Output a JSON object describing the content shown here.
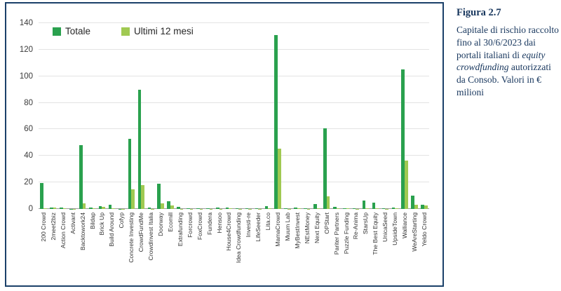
{
  "caption": {
    "title": "Figura 2.7",
    "text_before_italic": "Capitale di rischio raccolto fino al 30/6/2023 dai portali italiani di ",
    "italic": "equity crowdfunding",
    "text_after_italic": " autorizzati da Consob. Valori in € milioni"
  },
  "colors": {
    "frame_border": "#1b4069",
    "caption_text": "#17365d",
    "gridline": "#e3e3e3",
    "axis_text": "#3a3a3a"
  },
  "chart_data": {
    "type": "bar",
    "title": "",
    "xlabel": "",
    "ylabel": "",
    "ylim": [
      0,
      140
    ],
    "yticks": [
      0,
      20,
      40,
      60,
      80,
      100,
      120,
      140
    ],
    "grid": true,
    "legend_position": "top-left",
    "categories": [
      "200 Crowd",
      "2meet2biz",
      "Action Crowd",
      "Activant",
      "Backtowork24",
      "Bildap",
      "Brick Up",
      "Build Around",
      "Cofyp",
      "Concrete Investing",
      "CrowdFundMe",
      "CrowdInvest Italia",
      "Doorway",
      "Ecomill",
      "Extrafunding",
      "Forcrowd",
      "FoxCrowd",
      "Fundera",
      "Hensoo",
      "House4Crowd",
      "Idea Crowdfunding",
      "Investi-re",
      "LifeSeeder",
      "Lita.co",
      "MamaCrowd",
      "Muum Lab",
      "MyBestInvest",
      "NEstMoney",
      "Next Equity",
      "OPStart",
      "Pariter Partners",
      "Puzzle Funding",
      "Re-Anima",
      "StarsUp",
      "The Best Equity",
      "UnicaSeed",
      "UpsideTown",
      "Walliance",
      "WeAreStarting",
      "Yeldo Crowd"
    ],
    "series": [
      {
        "name": "Totale",
        "color": "#2aa14e",
        "values": [
          19.5,
          1.0,
          1.2,
          0.2,
          48,
          1.2,
          2.3,
          3.2,
          0.2,
          53,
          90,
          1.3,
          19,
          5.7,
          1.4,
          0.3,
          0.6,
          0.8,
          1.0,
          1.0,
          0.3,
          0.4,
          0.3,
          2.0,
          131,
          0.3,
          1.0,
          0.5,
          3.5,
          61,
          1.4,
          0.8,
          0.3,
          6.2,
          4.5,
          0.4,
          1.2,
          105,
          10,
          3.2
        ]
      },
      {
        "name": "Ultimi 12 mesi",
        "color": "#a0c952",
        "values": [
          0.3,
          1.0,
          0.4,
          0.1,
          4.0,
          0.5,
          1.8,
          0.4,
          0.1,
          15,
          18,
          0.2,
          4.0,
          2.5,
          0.1,
          0.1,
          0.2,
          0.2,
          0.2,
          0.3,
          0.1,
          0.1,
          0.1,
          0.3,
          45.5,
          0.1,
          0.3,
          0.2,
          0.3,
          9.5,
          0.3,
          0.5,
          0.1,
          0.8,
          0.5,
          0.1,
          0.8,
          36.5,
          3.0,
          2.8
        ]
      }
    ]
  }
}
